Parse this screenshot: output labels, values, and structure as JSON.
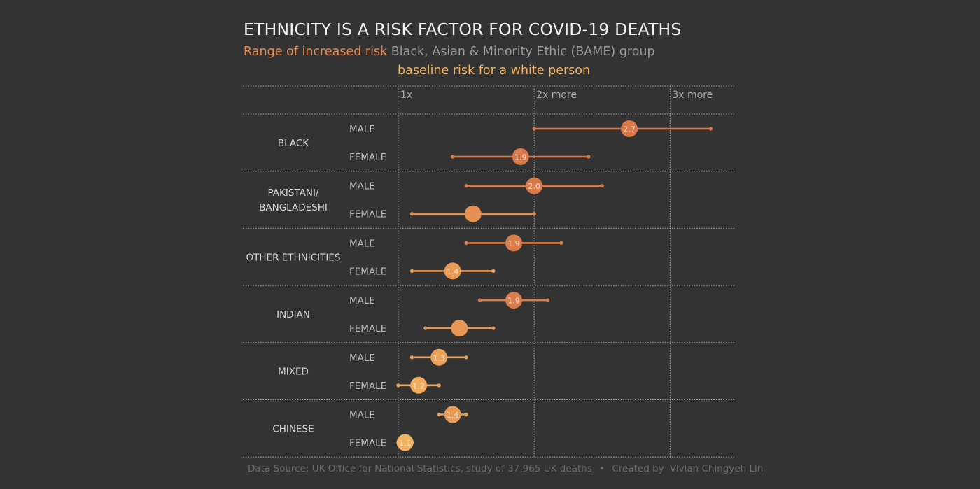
{
  "title": "ETHNICITY IS A RISK FACTOR FOR COVID-19 DEATHS",
  "subtitle": {
    "accent": "Range of increased risk",
    "rest": "Black, Asian & Minority Ethic (BAME) group",
    "baseline": "baseline risk for a white person"
  },
  "footer": {
    "source": "Data Source: UK Office for National Statistics, study of 37,965 UK deaths",
    "separator": "•",
    "credit_label": "Created by",
    "credit_name": "Vivian Chingyeh Lin"
  },
  "colors": {
    "background": "#333333",
    "high_risk": "#d9794a",
    "low_risk": "#f3b25e",
    "grid": "#cfcfcf",
    "label": "#d6d6d6"
  },
  "chart_data": {
    "type": "range-dot",
    "xlim": [
      1,
      3.4
    ],
    "axis_ticks": [
      {
        "value": 1,
        "label": "1x"
      },
      {
        "value": 2,
        "label": "2x more"
      },
      {
        "value": 3,
        "label": "3x more"
      }
    ],
    "groups": [
      {
        "name": "BLACK",
        "rows": [
          {
            "sex": "MALE",
            "value": 2.7,
            "value_label": "2.7",
            "low": 2.0,
            "high": 3.3
          },
          {
            "sex": "FEMALE",
            "value": 1.9,
            "value_label": "1.9",
            "low": 1.4,
            "high": 2.4
          }
        ]
      },
      {
        "name": "PAKISTANI/ BANGLADESHI",
        "rows": [
          {
            "sex": "MALE",
            "value": 2.0,
            "value_label": "2.0",
            "low": 1.5,
            "high": 2.5
          },
          {
            "sex": "FEMALE",
            "value": 1.55,
            "value_label": "",
            "low": 1.1,
            "high": 2.0
          }
        ]
      },
      {
        "name": "OTHER ETHNICITIES",
        "rows": [
          {
            "sex": "MALE",
            "value": 1.85,
            "value_label": "1.9",
            "low": 1.5,
            "high": 2.2
          },
          {
            "sex": "FEMALE",
            "value": 1.4,
            "value_label": "1.4",
            "low": 1.1,
            "high": 1.7
          }
        ]
      },
      {
        "name": "INDIAN",
        "rows": [
          {
            "sex": "MALE",
            "value": 1.85,
            "value_label": "1.9",
            "low": 1.6,
            "high": 2.1
          },
          {
            "sex": "FEMALE",
            "value": 1.45,
            "value_label": "",
            "low": 1.2,
            "high": 1.7
          }
        ]
      },
      {
        "name": "MIXED",
        "rows": [
          {
            "sex": "MALE",
            "value": 1.3,
            "value_label": "1.3",
            "low": 1.1,
            "high": 1.5
          },
          {
            "sex": "FEMALE",
            "value": 1.15,
            "value_label": "1.2",
            "low": 1.0,
            "high": 1.3
          }
        ]
      },
      {
        "name": "CHINESE",
        "rows": [
          {
            "sex": "MALE",
            "value": 1.4,
            "value_label": "1.4",
            "low": 1.3,
            "high": 1.5
          },
          {
            "sex": "FEMALE",
            "value": 1.05,
            "value_label": "1.1",
            "low": 1.0,
            "high": 1.1
          }
        ]
      }
    ]
  }
}
